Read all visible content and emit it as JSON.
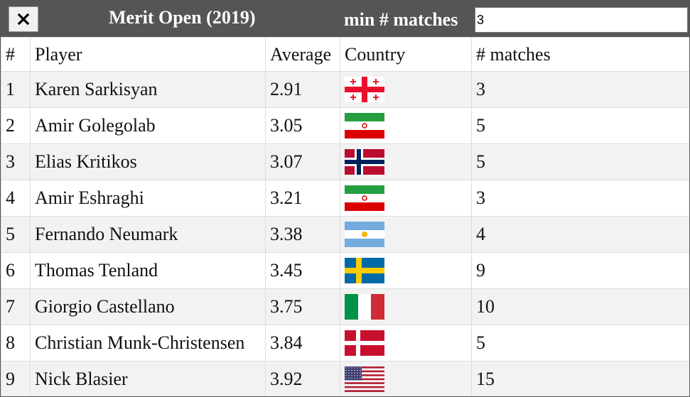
{
  "header": {
    "close_label": "close-icon",
    "title": "Merit Open (2019)",
    "min_matches_label": "min # matches",
    "min_matches_value": "3"
  },
  "table": {
    "columns": [
      "#",
      "Player",
      "Average",
      "Country",
      "# matches"
    ],
    "rows": [
      {
        "rank": "1",
        "player": "Karen Sarkisyan",
        "average": "2.91",
        "country": "georgia-flag",
        "matches": "3"
      },
      {
        "rank": "2",
        "player": "Amir Golegolab",
        "average": "3.05",
        "country": "iran-flag",
        "matches": "5"
      },
      {
        "rank": "3",
        "player": "Elias Kritikos",
        "average": "3.07",
        "country": "norway-flag",
        "matches": "5"
      },
      {
        "rank": "4",
        "player": "Amir Eshraghi",
        "average": "3.21",
        "country": "iran-flag",
        "matches": "3"
      },
      {
        "rank": "5",
        "player": "Fernando Neumark",
        "average": "3.38",
        "country": "argentina-flag",
        "matches": "4"
      },
      {
        "rank": "6",
        "player": "Thomas Tenland",
        "average": "3.45",
        "country": "sweden-flag",
        "matches": "9"
      },
      {
        "rank": "7",
        "player": "Giorgio Castellano",
        "average": "3.75",
        "country": "italy-flag",
        "matches": "10"
      },
      {
        "rank": "8",
        "player": "Christian Munk-Christensen",
        "average": "3.84",
        "country": "denmark-flag",
        "matches": "5"
      },
      {
        "rank": "9",
        "player": "Nick Blasier",
        "average": "3.92",
        "country": "usa-flag",
        "matches": "15"
      }
    ]
  }
}
